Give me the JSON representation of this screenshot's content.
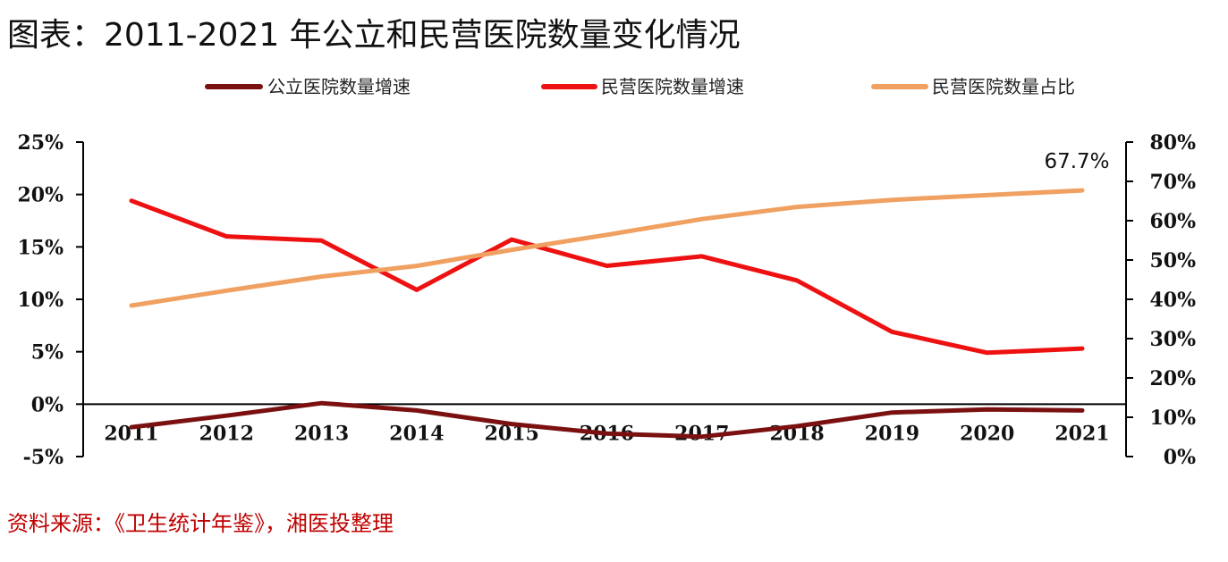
{
  "title": "图表：2011-2021 年公立和民营医院数量变化情况",
  "source": "资料来源：《卫生统计年鉴》，湘医投整理",
  "colors": {
    "public_growth": "#7b1010",
    "private_growth": "#ee1111",
    "private_share": "#f0a060",
    "axis": "#000000",
    "source_text": "#c00000"
  },
  "chart_data": {
    "type": "line",
    "categories": [
      "2011",
      "2012",
      "2013",
      "2014",
      "2015",
      "2016",
      "2017",
      "2018",
      "2019",
      "2020",
      "2021"
    ],
    "series": [
      {
        "name": "公立医院数量增速",
        "axis": "left",
        "values": [
          -2.2,
          -1.1,
          0.1,
          -0.6,
          -1.9,
          -2.8,
          -3.1,
          -2.1,
          -0.8,
          -0.5,
          -0.6
        ]
      },
      {
        "name": "民营医院数量增速",
        "axis": "left",
        "values": [
          19.4,
          16.0,
          15.6,
          10.9,
          15.7,
          13.2,
          14.1,
          11.8,
          6.9,
          4.9,
          5.3
        ]
      },
      {
        "name": "民营医院数量占比",
        "axis": "right",
        "values": [
          38.4,
          42.2,
          45.8,
          48.5,
          52.6,
          56.4,
          60.4,
          63.5,
          65.3,
          66.5,
          67.7
        ]
      }
    ],
    "left_axis": {
      "range": [
        -5,
        25
      ],
      "ticks": [
        -5,
        0,
        5,
        10,
        15,
        20,
        25
      ],
      "tick_labels": [
        "-5%",
        "0%",
        "5%",
        "10%",
        "15%",
        "20%",
        "25%"
      ]
    },
    "right_axis": {
      "range": [
        0,
        80
      ],
      "ticks": [
        0,
        10,
        20,
        30,
        40,
        50,
        60,
        70,
        80
      ],
      "tick_labels": [
        "0%",
        "10%",
        "20%",
        "30%",
        "40%",
        "50%",
        "60%",
        "70%",
        "80%"
      ]
    },
    "annotations": [
      {
        "series": "民营医院数量占比",
        "category": "2021",
        "text": "67.7%"
      }
    ],
    "legend_position": "top",
    "grid": false
  }
}
